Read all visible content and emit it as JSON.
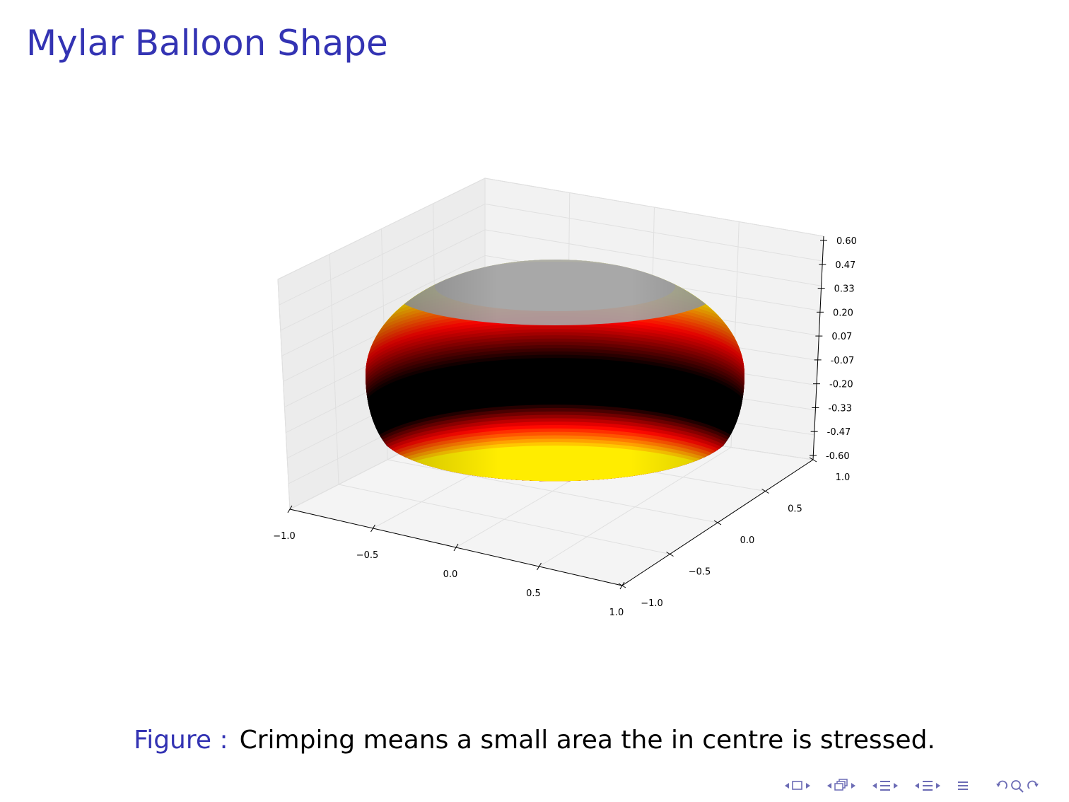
{
  "slide": {
    "title": "Mylar Balloon Shape"
  },
  "caption": {
    "label": "Figure :",
    "text": "Crimping means a small area the in centre is stressed."
  },
  "chart_data": {
    "type": "surface3d",
    "surface": "mylar balloon",
    "colormap": "hot",
    "x_ticks": [
      "−1.0",
      "−0.5",
      "0.0",
      "0.5",
      "1.0"
    ],
    "y_ticks": [
      "−1.0",
      "−0.5",
      "0.0",
      "0.5",
      "1.0"
    ],
    "z_ticks": [
      "0.60",
      "0.47",
      "0.33",
      "0.20",
      "0.07",
      "-0.07",
      "-0.20",
      "-0.33",
      "-0.47",
      "-0.60"
    ],
    "xlim": [
      -1.0,
      1.0
    ],
    "ylim": [
      -1.0,
      1.0
    ],
    "zlim": [
      -0.6,
      0.6
    ],
    "grid": true
  },
  "nav": {
    "icons": [
      "frame-prev-icon",
      "frame-icon",
      "frame-next-icon",
      "subsection-prev-icon",
      "subsection-icon",
      "subsection-next-icon",
      "section-prev-icon",
      "section-icon",
      "section-next-icon",
      "subsubsection-prev-icon",
      "subsubsection-icon",
      "subsubsection-next-icon",
      "align-icon",
      "back-icon",
      "search-icon",
      "forward-icon"
    ],
    "color": "#6c6cb5"
  }
}
